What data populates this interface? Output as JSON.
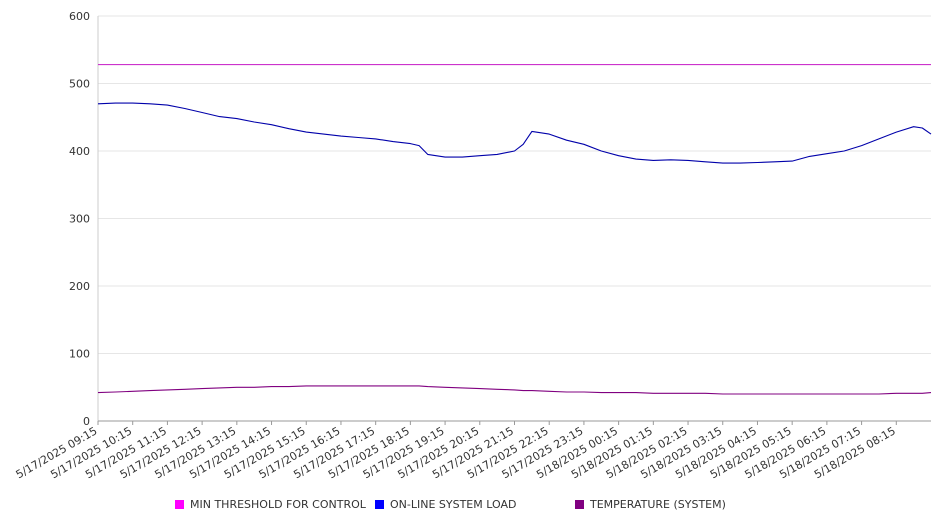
{
  "chart_data": {
    "type": "line",
    "title": "",
    "xlabel": "",
    "ylabel": "",
    "ylim": [
      0,
      600
    ],
    "yticks": [
      0,
      100,
      200,
      300,
      400,
      500,
      600
    ],
    "grid": true,
    "legend_position": "bottom",
    "x_tick_labels": [
      "5/17/2025 09:15",
      "5/17/2025 10:15",
      "5/17/2025 11:15",
      "5/17/2025 12:15",
      "5/17/2025 13:15",
      "5/17/2025 14:15",
      "5/17/2025 15:15",
      "5/17/2025 16:15",
      "5/17/2025 17:15",
      "5/17/2025 18:15",
      "5/17/2025 19:15",
      "5/17/2025 20:15",
      "5/17/2025 21:15",
      "5/17/2025 22:15",
      "5/17/2025 23:15",
      "5/18/2025 00:15",
      "5/18/2025 01:15",
      "5/18/2025 02:15",
      "5/18/2025 03:15",
      "5/18/2025 04:15",
      "5/18/2025 05:15",
      "5/18/2025 06:15",
      "5/18/2025 07:15",
      "5/18/2025 08:15"
    ],
    "x": [
      "5/17/2025 09:15",
      "5/17/2025 09:45",
      "5/17/2025 10:15",
      "5/17/2025 10:45",
      "5/17/2025 11:15",
      "5/17/2025 11:45",
      "5/17/2025 12:15",
      "5/17/2025 12:45",
      "5/17/2025 13:15",
      "5/17/2025 13:45",
      "5/17/2025 14:15",
      "5/17/2025 14:45",
      "5/17/2025 15:15",
      "5/17/2025 15:45",
      "5/17/2025 16:15",
      "5/17/2025 16:45",
      "5/17/2025 17:15",
      "5/17/2025 17:45",
      "5/17/2025 18:15",
      "5/17/2025 18:30",
      "5/17/2025 18:45",
      "5/17/2025 19:15",
      "5/17/2025 19:45",
      "5/17/2025 20:15",
      "5/17/2025 20:45",
      "5/17/2025 21:15",
      "5/17/2025 21:30",
      "5/17/2025 21:45",
      "5/17/2025 22:15",
      "5/17/2025 22:45",
      "5/17/2025 23:15",
      "5/17/2025 23:45",
      "5/18/2025 00:15",
      "5/18/2025 00:45",
      "5/18/2025 01:15",
      "5/18/2025 01:45",
      "5/18/2025 02:15",
      "5/18/2025 02:45",
      "5/18/2025 03:15",
      "5/18/2025 03:45",
      "5/18/2025 04:15",
      "5/18/2025 04:45",
      "5/18/2025 05:15",
      "5/18/2025 05:45",
      "5/18/2025 06:15",
      "5/18/2025 06:45",
      "5/18/2025 07:15",
      "5/18/2025 07:45",
      "5/18/2025 08:15",
      "5/18/2025 08:45",
      "5/18/2025 09:00",
      "5/18/2025 09:15"
    ],
    "series": [
      {
        "name": "MIN THRESHOLD FOR CONTROL",
        "color": "#cc33cc",
        "values": [
          528,
          528,
          528,
          528,
          528,
          528,
          528,
          528,
          528,
          528,
          528,
          528,
          528,
          528,
          528,
          528,
          528,
          528,
          528,
          528,
          528,
          528,
          528,
          528,
          528,
          528,
          528,
          528,
          528,
          528,
          528,
          528,
          528,
          528,
          528,
          528,
          528,
          528,
          528,
          528,
          528,
          528,
          528,
          528,
          528,
          528,
          528,
          528,
          528,
          528,
          528,
          528
        ]
      },
      {
        "name": "ON-LINE SYSTEM LOAD",
        "color": "#0000aa",
        "values": [
          470,
          471,
          471,
          470,
          468,
          463,
          457,
          451,
          448,
          443,
          439,
          433,
          428,
          425,
          422,
          420,
          418,
          414,
          411,
          408,
          395,
          391,
          391,
          393,
          395,
          400,
          410,
          429,
          425,
          416,
          410,
          400,
          393,
          388,
          386,
          387,
          386,
          384,
          382,
          382,
          383,
          384,
          385,
          392,
          396,
          400,
          408,
          418,
          428,
          436,
          434,
          425
        ]
      },
      {
        "name": "TEMPERATURE (SYSTEM)",
        "color": "#800080",
        "values": [
          42,
          43,
          44,
          45,
          46,
          47,
          48,
          49,
          50,
          50,
          51,
          51,
          52,
          52,
          52,
          52,
          52,
          52,
          52,
          52,
          51,
          50,
          49,
          48,
          47,
          46,
          45,
          45,
          44,
          43,
          43,
          42,
          42,
          42,
          41,
          41,
          41,
          41,
          40,
          40,
          40,
          40,
          40,
          40,
          40,
          40,
          40,
          40,
          41,
          41,
          41,
          42
        ]
      }
    ]
  },
  "legend": {
    "items": [
      {
        "label": "MIN THRESHOLD FOR CONTROL",
        "color": "#ff00ff"
      },
      {
        "label": "ON-LINE SYSTEM LOAD",
        "color": "#0000ff"
      },
      {
        "label": "TEMPERATURE (SYSTEM)",
        "color": "#800080"
      }
    ]
  }
}
